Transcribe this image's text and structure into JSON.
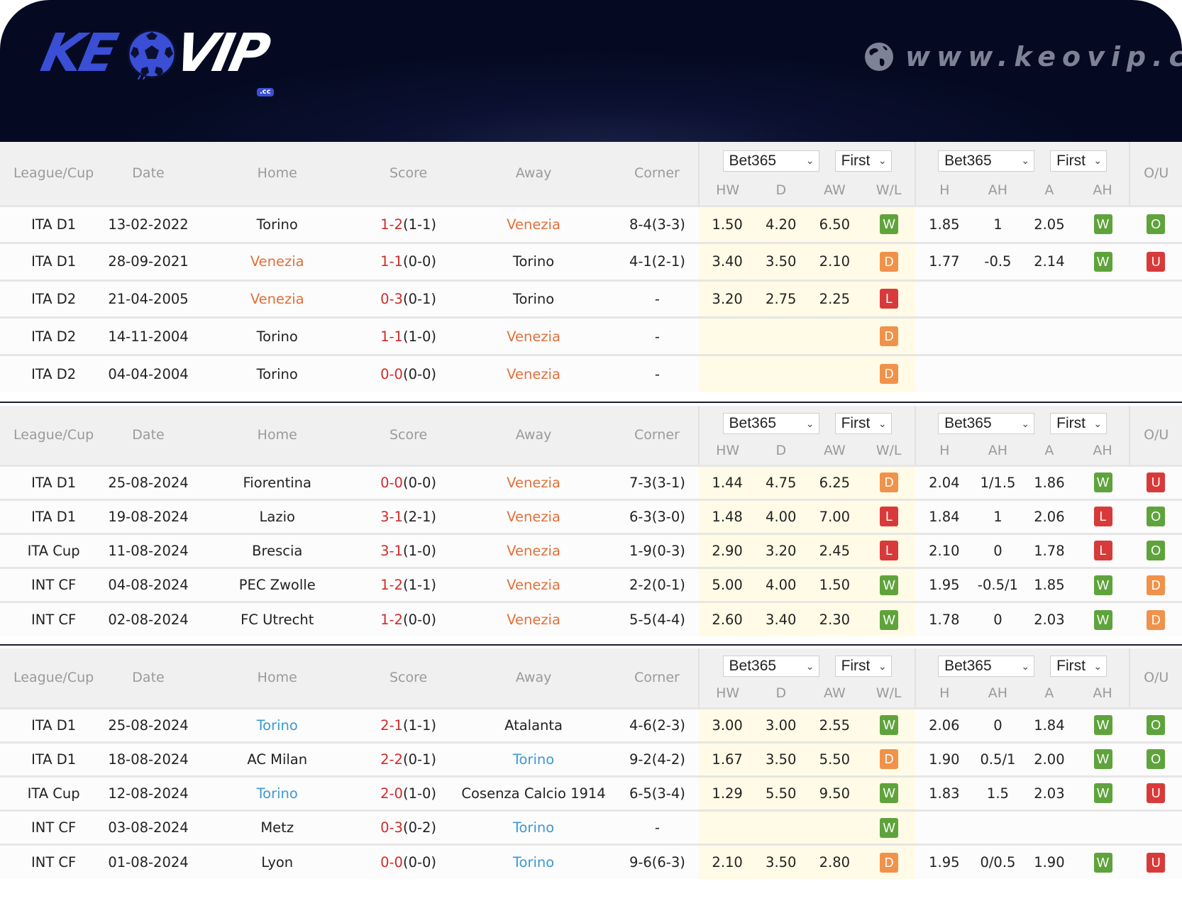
{
  "brand": {
    "logo_left": "KE",
    "logo_right": "VIP",
    "logo_suffix": ".cc",
    "site_url": "www.keovip.cc",
    "colors": {
      "banner_bg": "#050a22",
      "logo_blue": "#3a4fd6",
      "win": "#5fa33c",
      "draw": "#f0924a",
      "loss": "#d83a3a",
      "score_red": "#d12b2b",
      "venezia_orange": "#e2703a",
      "torino_blue": "#3b98d4",
      "odds_bg": "#fffbe6"
    }
  },
  "columns": {
    "league": "League/Cup",
    "date": "Date",
    "home": "Home",
    "score": "Score",
    "away": "Away",
    "corner": "Corner",
    "hw": "HW",
    "d": "D",
    "aw": "AW",
    "wl": "W/L",
    "h": "H",
    "ah": "AH",
    "a": "A",
    "ah2": "AH",
    "ou": "O/U"
  },
  "selects": {
    "book1": "Bet365",
    "period1": "First",
    "book2": "Bet365",
    "period2": "First"
  },
  "sections": [
    {
      "name": "head-to-head",
      "rows": [
        {
          "league": "ITA D1",
          "date": "13-02-2022",
          "home": "Torino",
          "home_hl": "",
          "score": "1-2",
          "ht": "(1-1)",
          "away": "Venezia",
          "away_hl": "ven",
          "corner": "8-4(3-3)",
          "hw": "1.50",
          "d": "4.20",
          "aw": "6.50",
          "wl": "W",
          "h": "1.85",
          "ah": "1",
          "a": "2.05",
          "ah_res": "W",
          "ou": "O"
        },
        {
          "league": "ITA D1",
          "date": "28-09-2021",
          "home": "Venezia",
          "home_hl": "ven",
          "score": "1-1",
          "ht": "(0-0)",
          "away": "Torino",
          "away_hl": "",
          "corner": "4-1(2-1)",
          "hw": "3.40",
          "d": "3.50",
          "aw": "2.10",
          "wl": "D",
          "h": "1.77",
          "ah": "-0.5",
          "a": "2.14",
          "ah_res": "W",
          "ou": "U"
        },
        {
          "league": "ITA D2",
          "date": "21-04-2005",
          "home": "Venezia",
          "home_hl": "ven",
          "score": "0-3",
          "ht": "(0-1)",
          "away": "Torino",
          "away_hl": "",
          "corner": "-",
          "hw": "3.20",
          "d": "2.75",
          "aw": "2.25",
          "wl": "L",
          "h": "",
          "ah": "",
          "a": "",
          "ah_res": "",
          "ou": ""
        },
        {
          "league": "ITA D2",
          "date": "14-11-2004",
          "home": "Torino",
          "home_hl": "",
          "score": "1-1",
          "ht": "(1-0)",
          "away": "Venezia",
          "away_hl": "ven",
          "corner": "-",
          "hw": "",
          "d": "",
          "aw": "",
          "wl": "D",
          "h": "",
          "ah": "",
          "a": "",
          "ah_res": "",
          "ou": ""
        },
        {
          "league": "ITA D2",
          "date": "04-04-2004",
          "home": "Torino",
          "home_hl": "",
          "score": "0-0",
          "ht": "(0-0)",
          "away": "Venezia",
          "away_hl": "ven",
          "corner": "-",
          "hw": "",
          "d": "",
          "aw": "",
          "wl": "D",
          "h": "",
          "ah": "",
          "a": "",
          "ah_res": "",
          "ou": ""
        }
      ]
    },
    {
      "name": "venezia-recent",
      "rows": [
        {
          "league": "ITA D1",
          "date": "25-08-2024",
          "home": "Fiorentina",
          "home_hl": "",
          "score": "0-0",
          "ht": "(0-0)",
          "away": "Venezia",
          "away_hl": "ven",
          "corner": "7-3(3-1)",
          "hw": "1.44",
          "d": "4.75",
          "aw": "6.25",
          "wl": "D",
          "h": "2.04",
          "ah": "1/1.5",
          "a": "1.86",
          "ah_res": "W",
          "ou": "U"
        },
        {
          "league": "ITA D1",
          "date": "19-08-2024",
          "home": "Lazio",
          "home_hl": "",
          "score": "3-1",
          "ht": "(2-1)",
          "away": "Venezia",
          "away_hl": "ven",
          "corner": "6-3(3-0)",
          "hw": "1.48",
          "d": "4.00",
          "aw": "7.00",
          "wl": "L",
          "h": "1.84",
          "ah": "1",
          "a": "2.06",
          "ah_res": "L",
          "ou": "O"
        },
        {
          "league": "ITA Cup",
          "date": "11-08-2024",
          "home": "Brescia",
          "home_hl": "",
          "score": "3-1",
          "ht": "(1-0)",
          "away": "Venezia",
          "away_hl": "ven",
          "corner": "1-9(0-3)",
          "hw": "2.90",
          "d": "3.20",
          "aw": "2.45",
          "wl": "L",
          "h": "2.10",
          "ah": "0",
          "a": "1.78",
          "ah_res": "L",
          "ou": "O"
        },
        {
          "league": "INT CF",
          "date": "04-08-2024",
          "home": "PEC Zwolle",
          "home_hl": "",
          "score": "1-2",
          "ht": "(1-1)",
          "away": "Venezia",
          "away_hl": "ven",
          "corner": "2-2(0-1)",
          "hw": "5.00",
          "d": "4.00",
          "aw": "1.50",
          "wl": "W",
          "h": "1.95",
          "ah": "-0.5/1",
          "a": "1.85",
          "ah_res": "W",
          "ou": "D"
        },
        {
          "league": "INT CF",
          "date": "02-08-2024",
          "home": "FC Utrecht",
          "home_hl": "",
          "score": "1-2",
          "ht": "(0-0)",
          "away": "Venezia",
          "away_hl": "ven",
          "corner": "5-5(4-4)",
          "hw": "2.60",
          "d": "3.40",
          "aw": "2.30",
          "wl": "W",
          "h": "1.78",
          "ah": "0",
          "a": "2.03",
          "ah_res": "W",
          "ou": "D"
        }
      ]
    },
    {
      "name": "torino-recent",
      "rows": [
        {
          "league": "ITA D1",
          "date": "25-08-2024",
          "home": "Torino",
          "home_hl": "tor",
          "score": "2-1",
          "ht": "(1-1)",
          "away": "Atalanta",
          "away_hl": "",
          "corner": "4-6(2-3)",
          "hw": "3.00",
          "d": "3.00",
          "aw": "2.55",
          "wl": "W",
          "h": "2.06",
          "ah": "0",
          "a": "1.84",
          "ah_res": "W",
          "ou": "O"
        },
        {
          "league": "ITA D1",
          "date": "18-08-2024",
          "home": "AC Milan",
          "home_hl": "",
          "score": "2-2",
          "ht": "(0-1)",
          "away": "Torino",
          "away_hl": "tor",
          "corner": "9-2(4-2)",
          "hw": "1.67",
          "d": "3.50",
          "aw": "5.50",
          "wl": "D",
          "h": "1.90",
          "ah": "0.5/1",
          "a": "2.00",
          "ah_res": "W",
          "ou": "O"
        },
        {
          "league": "ITA Cup",
          "date": "12-08-2024",
          "home": "Torino",
          "home_hl": "tor",
          "score": "2-0",
          "ht": "(1-0)",
          "away": "Cosenza Calcio 1914",
          "away_hl": "",
          "corner": "6-5(3-4)",
          "hw": "1.29",
          "d": "5.50",
          "aw": "9.50",
          "wl": "W",
          "h": "1.83",
          "ah": "1.5",
          "a": "2.03",
          "ah_res": "W",
          "ou": "U"
        },
        {
          "league": "INT CF",
          "date": "03-08-2024",
          "home": "Metz",
          "home_hl": "",
          "score": "0-3",
          "ht": "(0-2)",
          "away": "Torino",
          "away_hl": "tor",
          "corner": "-",
          "hw": "",
          "d": "",
          "aw": "",
          "wl": "W",
          "h": "",
          "ah": "",
          "a": "",
          "ah_res": "",
          "ou": ""
        },
        {
          "league": "INT CF",
          "date": "01-08-2024",
          "home": "Lyon",
          "home_hl": "",
          "score": "0-0",
          "ht": "(0-0)",
          "away": "Torino",
          "away_hl": "tor",
          "corner": "9-6(6-3)",
          "hw": "2.10",
          "d": "3.50",
          "aw": "2.80",
          "wl": "D",
          "h": "1.95",
          "ah": "0/0.5",
          "a": "1.90",
          "ah_res": "W",
          "ou": "U"
        }
      ]
    }
  ]
}
